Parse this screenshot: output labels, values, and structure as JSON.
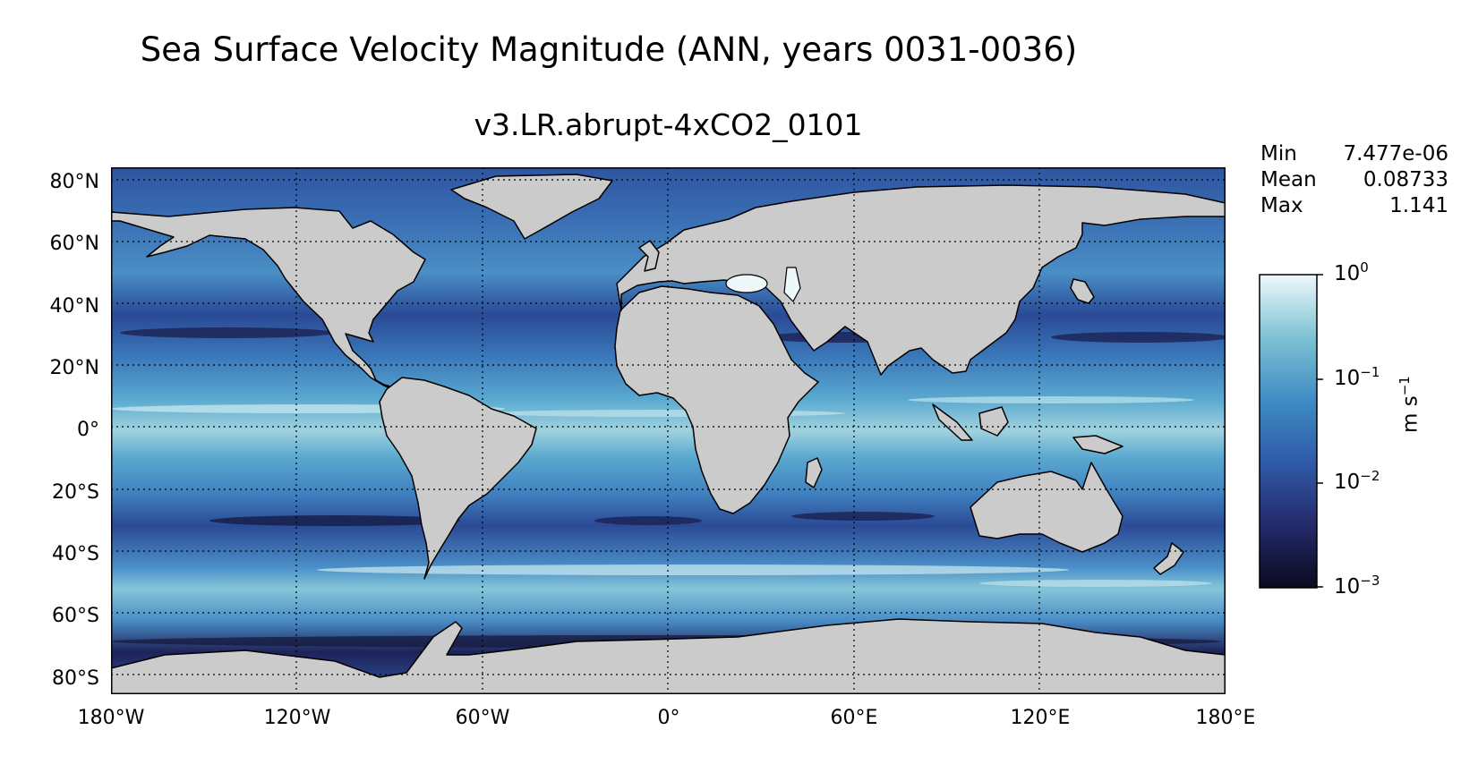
{
  "title": "Sea Surface Velocity Magnitude (ANN, years 0031-0036)",
  "subtitle": "v3.LR.abrupt-4xCO2_0101",
  "map": {
    "projection": "equirectangular",
    "lat_labels": [
      "80°N",
      "60°N",
      "40°N",
      "20°N",
      "0°",
      "20°S",
      "40°S",
      "60°S",
      "80°S"
    ],
    "lon_labels": [
      "180°W",
      "120°W",
      "60°W",
      "0°",
      "60°E",
      "120°E",
      "180°E"
    ],
    "gridlines": "dotted",
    "land_color": "#cbcbcb",
    "coastline_color": "#000000"
  },
  "stats": {
    "min_label": "Min",
    "min_value": "7.477e-06",
    "mean_label": "Mean",
    "mean_value": "0.08733",
    "max_label": "Max",
    "max_value": "1.141"
  },
  "colorbar": {
    "scale": "log",
    "ticks": [
      {
        "base": "10",
        "exp": "0"
      },
      {
        "base": "10",
        "exp": "−1"
      },
      {
        "base": "10",
        "exp": "−2"
      },
      {
        "base": "10",
        "exp": "−3"
      }
    ],
    "unit_base": "m s",
    "unit_exp": "−1",
    "colors": [
      "#0a0a1e",
      "#232a6a",
      "#2f5aa8",
      "#3f8cc4",
      "#7ec2d4",
      "#eef8fa"
    ]
  },
  "ocean_colors": {
    "fast": "#bfe4ea",
    "medium": "#4d9ccc",
    "slow": "#2b4d9a",
    "very_slow": "#1c1f50"
  }
}
